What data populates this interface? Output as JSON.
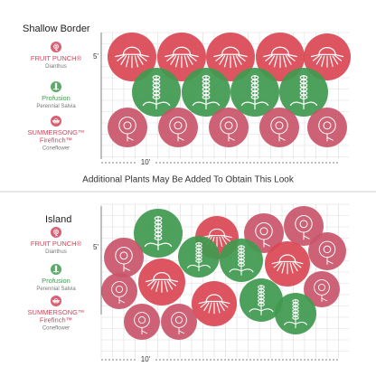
{
  "sections": [
    {
      "title": "Shallow Border",
      "legend": [
        {
          "lines": [
            "FRUIT PUNCH®",
            "Dianthus"
          ]
        },
        {
          "lines": [
            "Profusion",
            "Perennial Salvia"
          ]
        },
        {
          "lines": [
            "SUMMERSONG™",
            "Firefinch™",
            "Coneflower"
          ]
        }
      ],
      "depth": "5'",
      "width": "10'"
    },
    {
      "title": "Island",
      "legend": [
        {
          "lines": [
            "FRUIT PUNCH®",
            "Dianthus"
          ]
        },
        {
          "lines": [
            "Profusion",
            "Perennial Salvia"
          ]
        },
        {
          "lines": [
            "SUMMERSONG™",
            "Firefinch™",
            "Coneflower"
          ]
        }
      ],
      "depth": "5'",
      "width": "10'"
    }
  ],
  "note": "Additional Plants May Be Added To Obtain This Look"
}
